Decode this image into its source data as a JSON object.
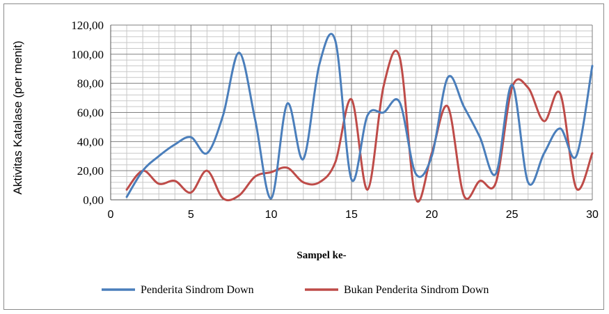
{
  "chart_data": {
    "type": "line",
    "title": "",
    "xlabel": "Sampel ke-",
    "ylabel": "Aktivitas Katalase (per menit)",
    "x": [
      1,
      2,
      3,
      4,
      5,
      6,
      7,
      8,
      9,
      10,
      11,
      12,
      13,
      14,
      15,
      16,
      17,
      18,
      19,
      20,
      21,
      22,
      23,
      24,
      25,
      26,
      27,
      28,
      29,
      30
    ],
    "xlim": [
      0,
      30
    ],
    "ylim": [
      0,
      120
    ],
    "x_ticks": [
      0,
      5,
      10,
      15,
      20,
      25,
      30
    ],
    "x_tick_labels": [
      "0",
      "5",
      "10",
      "15",
      "20",
      "25",
      "30"
    ],
    "y_ticks": [
      0,
      20,
      40,
      60,
      80,
      100,
      120
    ],
    "y_tick_labels": [
      "0,00",
      "20,00",
      "40,00",
      "60,00",
      "80,00",
      "100,00",
      "120,00"
    ],
    "grid": true,
    "legend_position": "bottom",
    "series": [
      {
        "name": "Penderita Sindrom Down",
        "color": "#4a7ebb",
        "values": [
          2,
          20,
          30,
          38,
          43,
          32,
          58,
          101,
          55,
          1,
          66,
          28,
          93,
          109,
          14,
          58,
          60,
          67,
          18,
          30,
          84,
          64,
          43,
          18,
          79,
          12,
          32,
          49,
          30,
          92
        ]
      },
      {
        "name": "Bukan Penderita Sindrom Down",
        "color": "#be4b48",
        "values": [
          7,
          20,
          11,
          13,
          5,
          20,
          1,
          3,
          16,
          19,
          22,
          12,
          12,
          26,
          69,
          7,
          78,
          98,
          1,
          32,
          64,
          3,
          13,
          12,
          77,
          77,
          54,
          73,
          8,
          32
        ]
      }
    ]
  }
}
